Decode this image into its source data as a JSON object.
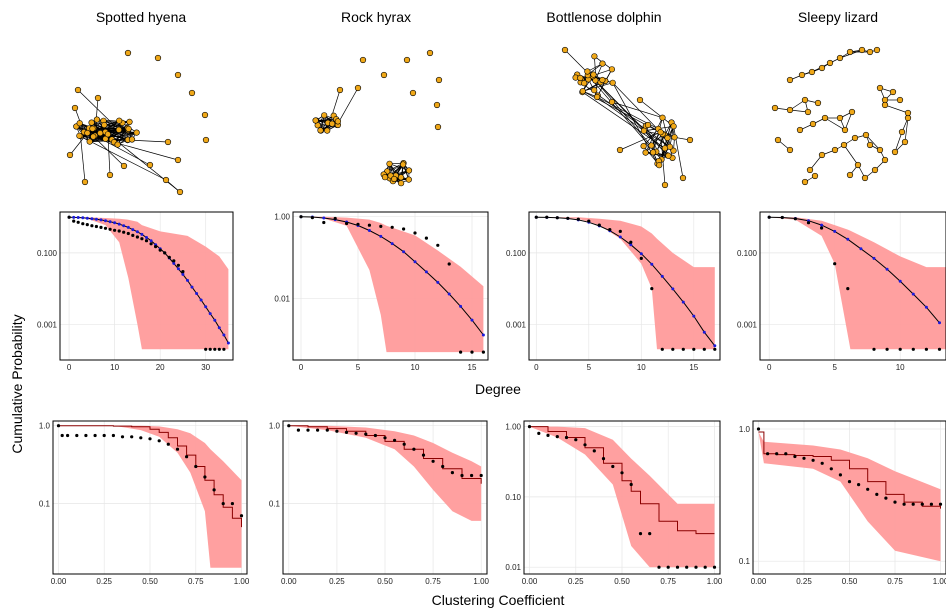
{
  "figure": {
    "columns": [
      "Spotted hyena",
      "Rock hyrax",
      "Bottlenose dolphin",
      "Sleepy lizard"
    ],
    "shared_y_label": "Cumulative Probability",
    "row1_x_label": "Degree",
    "row2_x_label": "Clustering Coefficient"
  },
  "colors": {
    "band": "#ff9b9b",
    "observed": "#000000",
    "model_points": "#1a1adc",
    "model_line_degree": "#000000",
    "model_line_clustering": "#8b0000",
    "node_fill": "#f0a818",
    "grid": "#e6e6e6"
  },
  "networks": [
    {
      "name": "Spotted hyena",
      "structure": "one dense cluster with a few peripheral nodes and several isolates"
    },
    {
      "name": "Rock hyrax",
      "structure": "two separate dense clusters and several isolates"
    },
    {
      "name": "Bottlenose dolphin",
      "structure": "one sparse connected network"
    },
    {
      "name": "Sleepy lizard",
      "structure": "many small chain-like components"
    }
  ],
  "chart_data": [
    {
      "type": "line",
      "panel": "degree",
      "network": "Spotted hyena",
      "y_scale": "log",
      "xlim": [
        -2,
        36
      ],
      "ylim": [
        0.0001,
        1.4
      ],
      "x_ticks": [
        0,
        10,
        20,
        30
      ],
      "y_ticks": [
        0.001,
        0.1
      ],
      "y_tick_labels": [
        "0.001",
        "0.100"
      ],
      "band": [
        [
          0,
          1,
          1
        ],
        [
          4,
          0.9,
          1
        ],
        [
          8,
          0.6,
          0.95
        ],
        [
          11,
          0.2,
          0.9
        ],
        [
          13,
          0.02,
          0.85
        ],
        [
          15,
          0.001,
          0.75
        ],
        [
          16,
          0.0002,
          0.6
        ],
        [
          20,
          0.0002,
          0.4
        ],
        [
          26,
          0.0002,
          0.3
        ],
        [
          30,
          0.0002,
          0.15
        ],
        [
          33,
          0.0002,
          0.08
        ],
        [
          35,
          0.0002,
          0.035
        ]
      ],
      "model_x": [
        0,
        1,
        2,
        3,
        4,
        5,
        6,
        7,
        8,
        9,
        10,
        11,
        12,
        13,
        14,
        15,
        16,
        17,
        18,
        19,
        20,
        21,
        22,
        23,
        24,
        25,
        26,
        27,
        28,
        29,
        30,
        31,
        32,
        33,
        34,
        35
      ],
      "model_y": [
        1,
        0.99,
        0.98,
        0.96,
        0.94,
        0.91,
        0.88,
        0.84,
        0.8,
        0.75,
        0.7,
        0.64,
        0.58,
        0.52,
        0.45,
        0.39,
        0.33,
        0.27,
        0.22,
        0.17,
        0.13,
        0.1,
        0.072,
        0.051,
        0.036,
        0.025,
        0.017,
        0.011,
        0.0073,
        0.0048,
        0.0031,
        0.002,
        0.0013,
        0.0008,
        0.0005,
        0.0003
      ],
      "observed_x": [
        0,
        1,
        2,
        3,
        4,
        5,
        6,
        7,
        8,
        9,
        10,
        11,
        12,
        13,
        14,
        15,
        16,
        17,
        18,
        19,
        20,
        21,
        22,
        23,
        24,
        25,
        30,
        31,
        32,
        33,
        34
      ],
      "observed_y": [
        1,
        0.78,
        0.72,
        0.66,
        0.62,
        0.58,
        0.55,
        0.52,
        0.49,
        0.46,
        0.43,
        0.41,
        0.38,
        0.35,
        0.31,
        0.28,
        0.25,
        0.22,
        0.18,
        0.15,
        0.12,
        0.1,
        0.075,
        0.06,
        0.045,
        0.03,
        0.0002,
        0.0002,
        0.0002,
        0.0002,
        0.0002
      ]
    },
    {
      "type": "line",
      "panel": "degree",
      "network": "Rock hyrax",
      "y_scale": "log",
      "xlim": [
        -0.7,
        16.4
      ],
      "ylim": [
        0.00032,
        1.3
      ],
      "x_ticks": [
        0,
        5,
        10,
        15
      ],
      "y_ticks": [
        0.01,
        1
      ],
      "y_tick_labels": [
        "0.01",
        "1.00"
      ],
      "band": [
        [
          0,
          1,
          1
        ],
        [
          2,
          0.9,
          1
        ],
        [
          4,
          0.6,
          0.95
        ],
        [
          6,
          0.05,
          0.85
        ],
        [
          7,
          0.004,
          0.7
        ],
        [
          7.5,
          0.0005,
          0.6
        ],
        [
          10,
          0.0005,
          0.35
        ],
        [
          12,
          0.0005,
          0.15
        ],
        [
          14,
          0.0005,
          0.06
        ],
        [
          16,
          0.0005,
          0.02
        ]
      ],
      "model_x": [
        0,
        1,
        2,
        3,
        4,
        5,
        6,
        7,
        8,
        9,
        10,
        11,
        12,
        13,
        14,
        15,
        16
      ],
      "model_y": [
        1,
        0.98,
        0.93,
        0.85,
        0.74,
        0.61,
        0.46,
        0.33,
        0.22,
        0.14,
        0.08,
        0.045,
        0.025,
        0.013,
        0.0065,
        0.003,
        0.0013
      ],
      "observed_x": [
        0,
        1,
        2,
        3,
        4,
        5,
        6,
        7,
        8,
        9,
        10,
        11,
        12,
        13,
        14,
        15,
        16
      ],
      "observed_y": [
        1,
        0.95,
        0.72,
        0.9,
        0.68,
        0.65,
        0.62,
        0.58,
        0.55,
        0.5,
        0.4,
        0.3,
        0.2,
        0.07,
        0.0005,
        0.0005,
        0.0005
      ]
    },
    {
      "type": "line",
      "panel": "degree",
      "network": "Bottlenose dolphin",
      "y_scale": "log",
      "xlim": [
        -0.7,
        17.5
      ],
      "ylim": [
        0.0001,
        1.4
      ],
      "x_ticks": [
        0,
        5,
        10,
        15
      ],
      "y_ticks": [
        0.001,
        0.1
      ],
      "y_tick_labels": [
        "0.001",
        "0.100"
      ],
      "band": [
        [
          0,
          1,
          1
        ],
        [
          4,
          0.9,
          1
        ],
        [
          6,
          0.6,
          0.9
        ],
        [
          8,
          0.25,
          0.8
        ],
        [
          10,
          0.05,
          0.55
        ],
        [
          11,
          0.01,
          0.35
        ],
        [
          11.5,
          0.0002,
          0.25
        ],
        [
          13,
          0.0002,
          0.1
        ],
        [
          15,
          0.0002,
          0.04
        ],
        [
          17,
          0.0002,
          0.04
        ]
      ],
      "model_x": [
        0,
        1,
        2,
        3,
        4,
        5,
        6,
        7,
        8,
        9,
        10,
        11,
        12,
        13,
        14,
        15,
        16,
        17
      ],
      "model_y": [
        1,
        0.99,
        0.97,
        0.92,
        0.84,
        0.72,
        0.57,
        0.42,
        0.28,
        0.17,
        0.095,
        0.048,
        0.022,
        0.0098,
        0.0042,
        0.0017,
        0.0006,
        0.00025
      ],
      "observed_x": [
        0,
        1,
        2,
        3,
        4,
        5,
        6,
        7,
        8,
        9,
        10,
        11,
        12,
        13,
        14,
        15,
        16,
        17
      ],
      "observed_y": [
        1,
        1,
        0.97,
        0.93,
        0.88,
        0.78,
        0.6,
        0.45,
        0.4,
        0.2,
        0.07,
        0.01,
        0.0002,
        0.0002,
        0.0002,
        0.0002,
        0.0002,
        0.0002
      ]
    },
    {
      "type": "line",
      "panel": "degree",
      "network": "Sleepy lizard",
      "y_scale": "log",
      "xlim": [
        -0.7,
        13.5
      ],
      "ylim": [
        0.0001,
        1.4
      ],
      "x_ticks": [
        0,
        5,
        10
      ],
      "y_ticks": [
        0.001,
        0.1
      ],
      "y_tick_labels": [
        "0.001",
        "0.100"
      ],
      "band": [
        [
          0,
          1,
          1
        ],
        [
          2,
          0.85,
          1
        ],
        [
          4,
          0.3,
          0.8
        ],
        [
          5,
          0.05,
          0.6
        ],
        [
          6,
          0.0005,
          0.45
        ],
        [
          6.2,
          0.0002,
          0.42
        ],
        [
          8,
          0.0002,
          0.2
        ],
        [
          10,
          0.0002,
          0.08
        ],
        [
          12,
          0.0002,
          0.04
        ],
        [
          13.5,
          0.0002,
          0.04
        ]
      ],
      "model_x": [
        0,
        1,
        2,
        3,
        4,
        5,
        6,
        7,
        8,
        9,
        10,
        11,
        12,
        13
      ],
      "model_y": [
        1,
        0.98,
        0.92,
        0.8,
        0.6,
        0.4,
        0.24,
        0.13,
        0.07,
        0.035,
        0.016,
        0.007,
        0.003,
        0.0011
      ],
      "observed_x": [
        0,
        1,
        2,
        3,
        4,
        5,
        6,
        8,
        9,
        10,
        11,
        12,
        13
      ],
      "observed_y": [
        1,
        0.98,
        0.9,
        0.7,
        0.5,
        0.05,
        0.01,
        0.0002,
        0.0002,
        0.0002,
        0.0002,
        0.0002,
        0.0002
      ]
    },
    {
      "type": "line",
      "panel": "clustering",
      "network": "Spotted hyena",
      "y_scale": "log",
      "xlim": [
        -0.03,
        1.03
      ],
      "ylim": [
        0.0125,
        1.15
      ],
      "x_ticks": [
        0,
        0.25,
        0.5,
        0.75,
        1
      ],
      "x_tick_labels": [
        "0.00",
        "0.25",
        "0.50",
        "0.75",
        "1.00"
      ],
      "y_ticks": [
        0.1,
        1
      ],
      "y_tick_labels": [
        "0.1",
        "1.0"
      ],
      "band": [
        [
          0,
          1,
          1
        ],
        [
          0.3,
          1,
          1
        ],
        [
          0.45,
          0.88,
          1
        ],
        [
          0.55,
          0.72,
          0.98
        ],
        [
          0.65,
          0.45,
          0.9
        ],
        [
          0.72,
          0.25,
          0.8
        ],
        [
          0.8,
          0.08,
          0.6
        ],
        [
          0.83,
          0.015,
          0.5
        ],
        [
          0.9,
          0.015,
          0.35
        ],
        [
          1,
          0.015,
          0.2
        ]
      ],
      "model_x": [
        0,
        0.1,
        0.2,
        0.3,
        0.4,
        0.5,
        0.55,
        0.6,
        0.65,
        0.7,
        0.75,
        0.8,
        0.85,
        0.9,
        0.95,
        1
      ],
      "model_y": [
        1,
        1,
        1,
        0.99,
        0.97,
        0.9,
        0.82,
        0.7,
        0.55,
        0.42,
        0.3,
        0.2,
        0.13,
        0.09,
        0.065,
        0.05
      ],
      "observed_x": [
        0,
        0.02,
        0.05,
        0.1,
        0.15,
        0.2,
        0.25,
        0.3,
        0.35,
        0.4,
        0.45,
        0.5,
        0.55,
        0.6,
        0.65,
        0.7,
        0.75,
        0.8,
        0.85,
        0.9,
        0.95,
        1
      ],
      "observed_y": [
        1,
        0.75,
        0.75,
        0.75,
        0.75,
        0.75,
        0.75,
        0.75,
        0.72,
        0.72,
        0.7,
        0.68,
        0.64,
        0.58,
        0.5,
        0.4,
        0.3,
        0.22,
        0.15,
        0.1,
        0.1,
        0.07
      ]
    },
    {
      "type": "line",
      "panel": "clustering",
      "network": "Rock hyrax",
      "y_scale": "log",
      "xlim": [
        -0.03,
        1.03
      ],
      "ylim": [
        0.0125,
        1.15
      ],
      "x_ticks": [
        0,
        0.25,
        0.5,
        0.75,
        1
      ],
      "x_tick_labels": [
        "0.00",
        "0.25",
        "0.50",
        "0.75",
        "1.00"
      ],
      "y_ticks": [
        0.1,
        1
      ],
      "y_tick_labels": [
        "0.1",
        "1.0"
      ],
      "band": [
        [
          0,
          1,
          1
        ],
        [
          0.2,
          0.88,
          1
        ],
        [
          0.4,
          0.7,
          0.95
        ],
        [
          0.55,
          0.5,
          0.85
        ],
        [
          0.65,
          0.3,
          0.75
        ],
        [
          0.75,
          0.15,
          0.6
        ],
        [
          0.85,
          0.08,
          0.45
        ],
        [
          0.95,
          0.06,
          0.35
        ],
        [
          1,
          0.06,
          0.3
        ]
      ],
      "model_x": [
        0,
        0.1,
        0.2,
        0.3,
        0.4,
        0.5,
        0.6,
        0.7,
        0.8,
        0.9,
        1
      ],
      "model_y": [
        1,
        0.97,
        0.92,
        0.85,
        0.75,
        0.63,
        0.5,
        0.38,
        0.28,
        0.21,
        0.18
      ],
      "observed_x": [
        0,
        0.05,
        0.1,
        0.15,
        0.2,
        0.25,
        0.3,
        0.35,
        0.4,
        0.45,
        0.5,
        0.55,
        0.6,
        0.65,
        0.7,
        0.75,
        0.8,
        0.85,
        0.9,
        0.95,
        1
      ],
      "observed_y": [
        1,
        0.88,
        0.88,
        0.88,
        0.88,
        0.85,
        0.82,
        0.8,
        0.78,
        0.75,
        0.7,
        0.65,
        0.58,
        0.5,
        0.42,
        0.35,
        0.3,
        0.25,
        0.23,
        0.23,
        0.23
      ]
    },
    {
      "type": "line",
      "panel": "clustering",
      "network": "Bottlenose dolphin",
      "y_scale": "log",
      "xlim": [
        -0.03,
        1.03
      ],
      "ylim": [
        0.008,
        1.2
      ],
      "x_ticks": [
        0,
        0.25,
        0.5,
        0.75,
        1
      ],
      "x_tick_labels": [
        "0.00",
        "0.25",
        "0.50",
        "0.75",
        "1.00"
      ],
      "y_ticks": [
        0.01,
        0.1,
        1
      ],
      "y_tick_labels": [
        "0.01",
        "0.10",
        "1.00"
      ],
      "band": [
        [
          0,
          1,
          1
        ],
        [
          0.15,
          0.7,
          1
        ],
        [
          0.3,
          0.4,
          0.95
        ],
        [
          0.45,
          0.15,
          0.65
        ],
        [
          0.55,
          0.02,
          0.35
        ],
        [
          0.65,
          0.01,
          0.2
        ],
        [
          0.8,
          0.01,
          0.08
        ],
        [
          1,
          0.01,
          0.08
        ]
      ],
      "model_x": [
        0,
        0.1,
        0.2,
        0.3,
        0.4,
        0.5,
        0.55,
        0.6,
        0.7,
        0.8,
        0.9,
        1
      ],
      "model_y": [
        1,
        0.85,
        0.7,
        0.5,
        0.3,
        0.17,
        0.12,
        0.08,
        0.045,
        0.033,
        0.03,
        0.03
      ],
      "observed_x": [
        0,
        0.05,
        0.1,
        0.15,
        0.2,
        0.25,
        0.3,
        0.35,
        0.4,
        0.45,
        0.5,
        0.55,
        0.6,
        0.65,
        0.7,
        0.75,
        0.8,
        0.85,
        0.9,
        0.95,
        1
      ],
      "observed_y": [
        1,
        0.8,
        0.75,
        0.72,
        0.7,
        0.65,
        0.55,
        0.45,
        0.35,
        0.27,
        0.22,
        0.15,
        0.03,
        0.03,
        0.01,
        0.01,
        0.01,
        0.01,
        0.01,
        0.01,
        0.01
      ]
    },
    {
      "type": "line",
      "panel": "clustering",
      "network": "Sleepy lizard",
      "y_scale": "log",
      "xlim": [
        -0.03,
        1.03
      ],
      "ylim": [
        0.08,
        1.15
      ],
      "x_ticks": [
        0,
        0.25,
        0.5,
        0.75,
        1
      ],
      "x_tick_labels": [
        "0.00",
        "0.25",
        "0.50",
        "0.75",
        "1.00"
      ],
      "y_ticks": [
        0.1,
        1
      ],
      "y_tick_labels": [
        "0.1",
        "1.0"
      ],
      "band": [
        [
          0,
          0.95,
          0.95
        ],
        [
          0.03,
          0.55,
          0.8
        ],
        [
          0.3,
          0.5,
          0.75
        ],
        [
          0.45,
          0.4,
          0.7
        ],
        [
          0.6,
          0.2,
          0.6
        ],
        [
          0.75,
          0.12,
          0.48
        ],
        [
          1,
          0.1,
          0.35
        ]
      ],
      "model_x": [
        0,
        0.03,
        0.1,
        0.2,
        0.3,
        0.4,
        0.5,
        0.6,
        0.7,
        0.8,
        0.9,
        1
      ],
      "model_y": [
        0.95,
        0.65,
        0.64,
        0.63,
        0.62,
        0.58,
        0.5,
        0.4,
        0.32,
        0.28,
        0.26,
        0.25
      ],
      "observed_x": [
        0,
        0.05,
        0.1,
        0.15,
        0.2,
        0.25,
        0.3,
        0.35,
        0.4,
        0.45,
        0.5,
        0.55,
        0.6,
        0.65,
        0.7,
        0.75,
        0.8,
        0.85,
        0.9,
        0.95,
        1
      ],
      "observed_y": [
        1,
        0.65,
        0.65,
        0.65,
        0.62,
        0.6,
        0.58,
        0.55,
        0.5,
        0.45,
        0.4,
        0.38,
        0.35,
        0.32,
        0.3,
        0.28,
        0.27,
        0.27,
        0.27,
        0.27,
        0.27
      ]
    }
  ]
}
